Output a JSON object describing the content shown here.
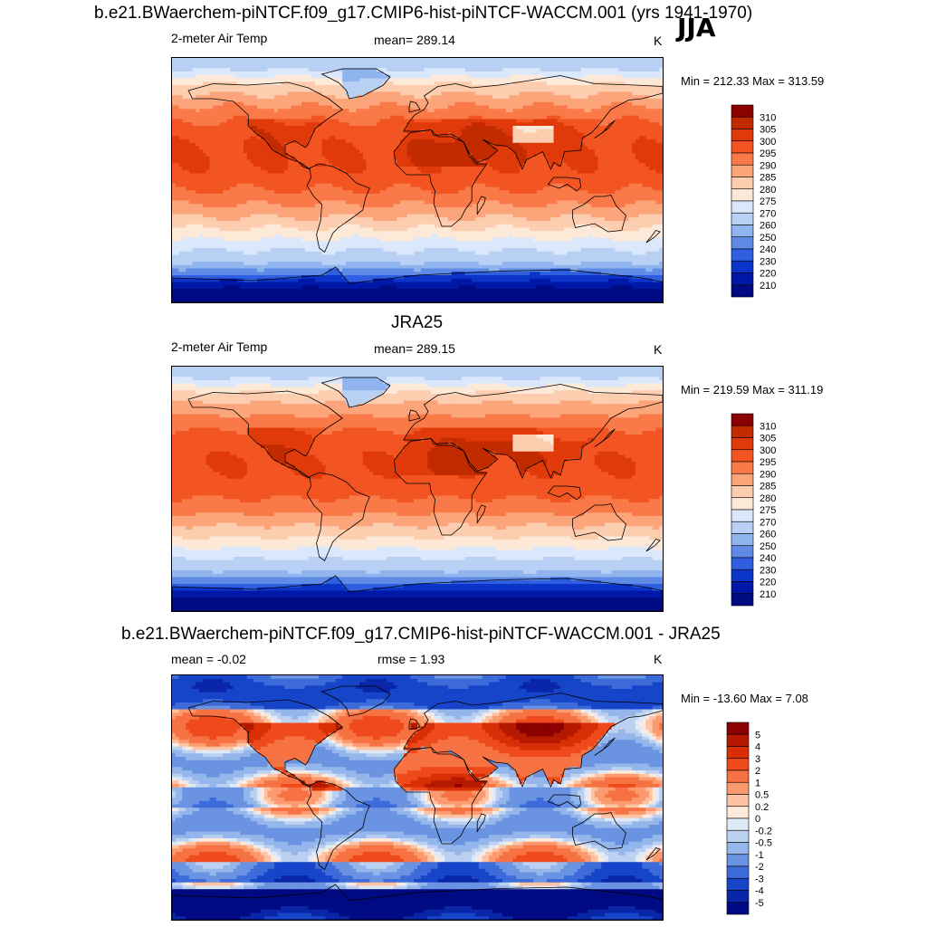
{
  "figure": {
    "main_title": "b.e21.BWaerchem-piNTCF.f09_g17.CMIP6-hist-piNTCF-WACCM.001 (yrs 1941-1970)",
    "season": "JJA"
  },
  "chart_data": [
    {
      "type": "heatmap",
      "title": "b.e21.BWaerchem-piNTCF.f09_g17.CMIP6-hist-piNTCF-WACCM.001 (yrs 1941-1970)",
      "left_label": "2-meter Air Temp",
      "center_label": "mean= 289.14",
      "units": "K",
      "mean": 289.14,
      "min": 212.33,
      "max": 313.59,
      "minmax_text": "Min = 212.33 Max = 313.59",
      "colorbar_levels": [
        "310",
        "305",
        "300",
        "295",
        "290",
        "285",
        "280",
        "275",
        "270",
        "260",
        "250",
        "240",
        "230",
        "220",
        "210"
      ],
      "colors": [
        "#8b0000",
        "#c22b00",
        "#e03a0a",
        "#f25522",
        "#f97a48",
        "#fca47a",
        "#fdcdb0",
        "#fde9d8",
        "#dbe8fb",
        "#b9d0f5",
        "#90b4ee",
        "#5f8be6",
        "#2f5ee0",
        "#0a35c8",
        "#0018a8",
        "#000a82"
      ]
    },
    {
      "type": "heatmap",
      "title": "JRA25",
      "left_label": "2-meter Air Temp",
      "center_label": "mean= 289.15",
      "units": "K",
      "mean": 289.15,
      "min": 219.59,
      "max": 311.19,
      "minmax_text": "Min = 219.59 Max = 311.19",
      "colorbar_levels": [
        "310",
        "305",
        "300",
        "295",
        "290",
        "285",
        "280",
        "275",
        "270",
        "260",
        "250",
        "240",
        "230",
        "220",
        "210"
      ],
      "colors": [
        "#8b0000",
        "#c22b00",
        "#e03a0a",
        "#f25522",
        "#f97a48",
        "#fca47a",
        "#fdcdb0",
        "#fde9d8",
        "#dbe8fb",
        "#b9d0f5",
        "#90b4ee",
        "#5f8be6",
        "#2f5ee0",
        "#0a35c8",
        "#0018a8",
        "#000a82"
      ]
    },
    {
      "type": "heatmap",
      "title": "b.e21.BWaerchem-piNTCF.f09_g17.CMIP6-hist-piNTCF-WACCM.001 - JRA25",
      "left_label": "mean =  -0.02",
      "center_label": "rmse =   1.93",
      "units": "K",
      "mean": -0.02,
      "rmse": 1.93,
      "min": -13.6,
      "max": 7.08,
      "minmax_text": "Min = -13.60 Max =   7.08",
      "colorbar_levels": [
        "5",
        "4",
        "3",
        "2",
        "1",
        "0.5",
        "0.2",
        "0",
        "-0.2",
        "-0.5",
        "-1",
        "-2",
        "-3",
        "-4",
        "-5"
      ],
      "colors": [
        "#8b0000",
        "#b51a00",
        "#d92f06",
        "#ee4a1c",
        "#f77242",
        "#fb9a6e",
        "#fdc3a3",
        "#feeadc",
        "#dfeaf8",
        "#bcd1f1",
        "#94b6ea",
        "#6a93e2",
        "#3d6bd9",
        "#1745c9",
        "#0a26a8",
        "#000a82"
      ]
    }
  ]
}
